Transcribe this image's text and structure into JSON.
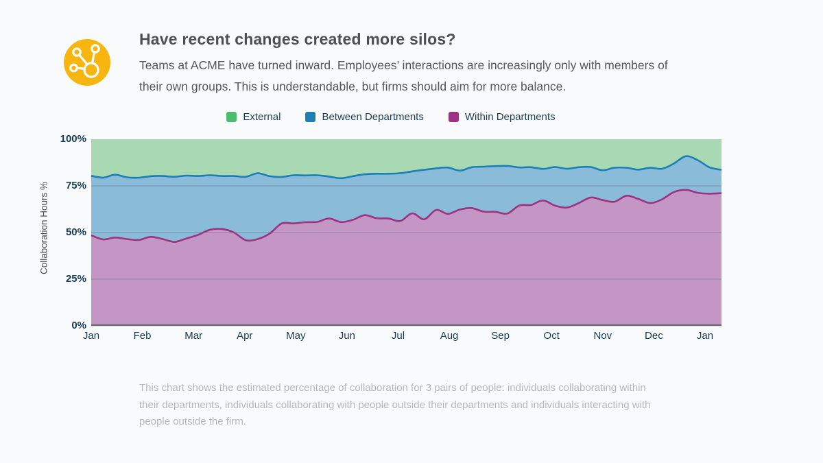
{
  "header": {
    "icon": "network-nodes-icon",
    "icon_bg_color": "#f6b50f",
    "title": "Have recent changes created more silos?",
    "subtitle": "Teams at ACME have turned inward. Employees’ interactions are increasingly only with members of their own groups. This is understandable, but firms should aim for more balance."
  },
  "footnote": "This chart shows the estimated percentage of collaboration for 3 pairs of people: individuals collaborating within their departments, individuals collaborating with people outside their departments and individuals interacting with people outside the firm.",
  "chart_data": {
    "type": "area",
    "stacked": true,
    "normalized_percent": true,
    "sampling": "weekly, Jan through mid-January of following year",
    "ylabel": "Collaboration Hours %",
    "xlabel": "",
    "ylim": [
      0,
      100
    ],
    "grid": "horizontal",
    "legend_position": "top",
    "y_ticks_top_down": [
      "100%",
      "75%",
      "50%",
      "25%",
      "0%"
    ],
    "x_tick_labels": [
      "Jan",
      "Feb",
      "Mar",
      "Apr",
      "May",
      "Jun",
      "Jul",
      "Aug",
      "Sep",
      "Oct",
      "Nov",
      "Dec",
      "Jan"
    ],
    "colors": {
      "grid": "rgba(108,118,134,0.45)",
      "axis_line": "#6f6873",
      "tick_text": "#173a56"
    },
    "series": [
      {
        "name": "External",
        "stack_order": 3,
        "swatch_color": "#4cbd6f",
        "fill_color": "#a9d9b2",
        "line_color": "none",
        "values": [
          19.6,
          20.6,
          19.0,
          20.4,
          20.6,
          19.8,
          19.7,
          20.1,
          19.5,
          19.7,
          19.3,
          19.7,
          19.7,
          20.1,
          18.2,
          19.8,
          20.2,
          19.3,
          19.4,
          19.3,
          20.0,
          20.9,
          19.8,
          18.8,
          18.5,
          18.5,
          18.2,
          17.2,
          16.4,
          15.6,
          15.2,
          16.8,
          15.0,
          14.7,
          14.4,
          14.3,
          15.1,
          15.0,
          15.9,
          14.9,
          15.8,
          15.0,
          14.9,
          16.6,
          15.3,
          15.3,
          16.3,
          15.3,
          15.8,
          13.0,
          9.1,
          11.2,
          15.1,
          16.4
        ]
      },
      {
        "name": "Between Departments",
        "stack_order": 2,
        "swatch_color": "#1b80b6",
        "fill_color": "#8abbd9",
        "line_color": "#1b7fb5",
        "values": [
          31.9,
          33.1,
          33.7,
          33.1,
          33.4,
          32.5,
          33.8,
          34.9,
          33.7,
          31.5,
          29.2,
          28.4,
          30.3,
          34.0,
          35.3,
          30.8,
          25.0,
          25.8,
          25.1,
          25.0,
          22.5,
          23.5,
          23.4,
          21.9,
          23.8,
          24.0,
          25.6,
          22.5,
          26.5,
          22.3,
          24.8,
          20.9,
          21.9,
          24.1,
          24.5,
          25.5,
          20.4,
          20.2,
          16.9,
          20.7,
          20.8,
          19.2,
          16.3,
          16.0,
          18.2,
          15.0,
          15.7,
          18.9,
          16.4,
          15.3,
          18.0,
          17.5,
          14.1,
          12.5
        ]
      },
      {
        "name": "Within Departments",
        "stack_order": 1,
        "swatch_color": "#9c3483",
        "fill_color": "#c496c5",
        "line_color": "#9c3380",
        "values": [
          48.5,
          46.3,
          47.3,
          46.5,
          46.0,
          47.7,
          46.5,
          45.0,
          46.8,
          48.8,
          51.5,
          51.9,
          50.0,
          45.9,
          46.5,
          49.4,
          54.8,
          54.9,
          55.5,
          55.7,
          57.5,
          55.6,
          56.8,
          59.3,
          57.7,
          57.5,
          56.2,
          60.3,
          57.1,
          62.1,
          60.0,
          62.3,
          63.1,
          61.2,
          61.1,
          60.2,
          64.5,
          64.8,
          67.2,
          64.4,
          63.4,
          65.8,
          68.8,
          67.4,
          66.5,
          69.7,
          68.0,
          65.8,
          67.8,
          71.7,
          72.9,
          71.3,
          70.8,
          71.1
        ]
      }
    ]
  }
}
